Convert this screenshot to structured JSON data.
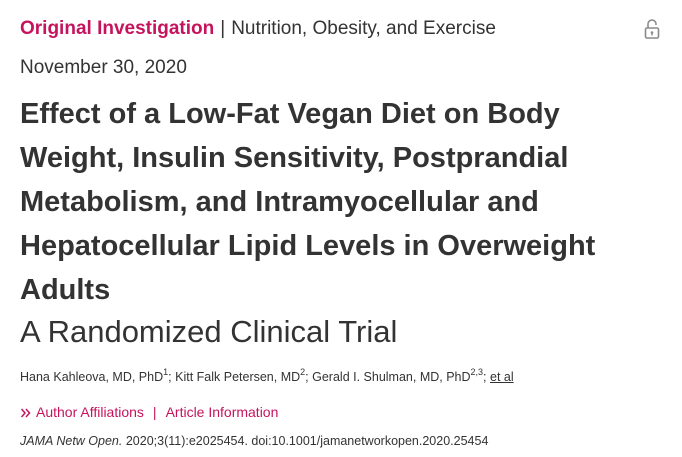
{
  "header": {
    "article_type": "Original Investigation",
    "separator": "|",
    "category": "Nutrition, Obesity, and Exercise",
    "lock_icon": "unlocked-padlock-icon"
  },
  "date": "November 30, 2020",
  "title": "Effect of a Low-Fat Vegan Diet on Body Weight, Insulin Sensitivity, Postprandial Metabolism, and Intramyocellular and Hepatocellular Lipid Levels in Overweight Adults",
  "subtitle": "A Randomized Clinical Trial",
  "authors": {
    "a1_name": "Hana Kahleova, MD, PhD",
    "a1_sup": "1",
    "sep1": "; ",
    "a2_name": "Kitt Falk Petersen, MD",
    "a2_sup": "2",
    "sep2": "; ",
    "a3_name": "Gerald I. Shulman, MD, PhD",
    "a3_sup": "2,3",
    "sep3": "; ",
    "et_al": "et al"
  },
  "links": {
    "chevron_icon": "double-chevron-right-icon",
    "author_affiliations": "Author Affiliations",
    "divider": "|",
    "article_information": "Article Information"
  },
  "citation": {
    "journal": "JAMA Netw Open.",
    "details": " 2020;3(11):e2025454. doi:10.1001/jamanetworkopen.2020.25454"
  },
  "colors": {
    "accent": "#c5145d",
    "text": "#333333",
    "background": "#ffffff"
  }
}
